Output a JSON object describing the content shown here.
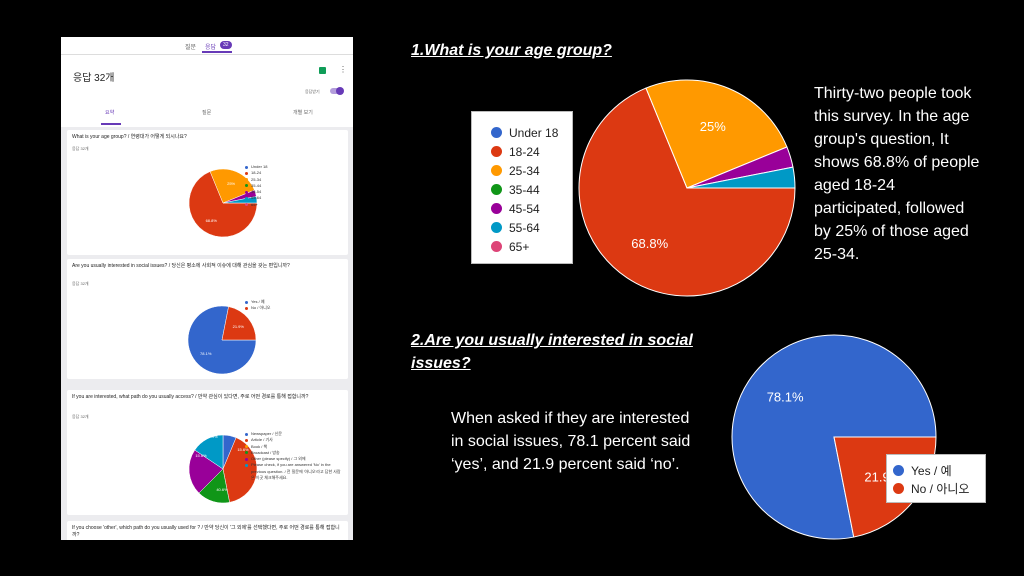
{
  "colors": {
    "blue": "#3366cc",
    "red": "#dc3912",
    "orange": "#ff9900",
    "green": "#109618",
    "purple": "#990099",
    "teal": "#0099c6",
    "pink": "#dd4477"
  },
  "phone": {
    "tabs": [
      "질문",
      "응답"
    ],
    "badge": "32",
    "title": "응답 32개",
    "accept_label": "응답받기",
    "subtabs": [
      "요약",
      "질문",
      "개별 보기"
    ],
    "card1": {
      "question": "What is your age group? / 연령대가 어떻게 되시나요?",
      "count": "응답 32개",
      "legend": [
        "Under 18",
        "18-24",
        "25-34",
        "35-44",
        "45-54",
        "55-64",
        "65+"
      ]
    },
    "card2": {
      "question": "Are you usually interested in social issues? / 당신은 평소에 사회적 이슈에 대해 관심을 갖는 편입니까?",
      "count": "응답 32개",
      "legend": [
        "Yes / 예",
        "No / 아니오"
      ]
    },
    "card3": {
      "question": "If you are interested, what path do you usually access? / 만약 관심이 있다면, 주로 어떤 경로를 통해 접합니까?",
      "count": "응답 32개",
      "legend": [
        "Newspaper / 신문",
        "Article / 기사",
        "Book / 책",
        "Broadcast / 방송",
        "Other (please specify) / 그 외에",
        "Please check, if you are answered 'No' in the previous question. / 전 질문에 '아니오'라고 답한 사람은 이곳 체크해주세요."
      ],
      "labels": [
        "21.9%",
        "15.6%",
        "15.6%",
        "40.6%"
      ]
    },
    "card4": {
      "question": "If you choose 'other', which path do you usually used for ? / 만약 당신이 '그 외에'를 선택했다면, 주로 어떤 경로를 통해 접합니까?"
    }
  },
  "section1": {
    "title": "1.What is your age group?",
    "paragraph": "Thirty-two people took this survey. In the age group's question, It shows 68.8% of people aged 18-24 participated, followed by 25% of those aged 25-34."
  },
  "section2": {
    "title": "2.Are you usually interested in social issues?",
    "paragraph": "When asked if they are interested in social issues, 78.1 percent said ‘yes’, and 21.9 percent said ‘no’."
  },
  "chart_data": [
    {
      "type": "pie",
      "title": "What is your age group? / 연령대가 어떻게 되시나요?",
      "categories": [
        "Under 18",
        "18-24",
        "25-34",
        "35-44",
        "45-54",
        "55-64",
        "65+"
      ],
      "values": [
        0,
        68.8,
        25,
        0,
        3.1,
        3.1,
        0
      ],
      "labels": [
        "",
        "68.8%",
        "25%",
        "",
        "",
        "",
        ""
      ],
      "colors": [
        "#3366cc",
        "#dc3912",
        "#ff9900",
        "#109618",
        "#990099",
        "#0099c6",
        "#dd4477"
      ],
      "legend": "left"
    },
    {
      "type": "pie",
      "title": "Are you usually interested in social issues? / 당신은 평소에 사회적 이슈에 대해 관심을 갖는 편입니까?",
      "categories": [
        "Yes / 예",
        "No / 아니오"
      ],
      "values": [
        78.1,
        21.9
      ],
      "labels": [
        "78.1%",
        "21.9%"
      ],
      "colors": [
        "#3366cc",
        "#dc3912"
      ],
      "legend": "bottom-right"
    },
    {
      "type": "pie",
      "title": "If you are interested, what path do you usually access? / 만약 관심이 있다면, 주로 어떤 경로를 통해 접합니까?",
      "categories": [
        "Newspaper / 신문",
        "Article / 기사",
        "Book / 책",
        "Broadcast / 방송",
        "Other (please specify) / 그 외에",
        "Please check, if you are answered 'No' in the previous question."
      ],
      "values": [
        6.3,
        40.6,
        0,
        15.6,
        21.9,
        15.6
      ],
      "colors": [
        "#3366cc",
        "#dc3912",
        "#ff9900",
        "#109618",
        "#990099",
        "#0099c6"
      ],
      "legend": "right"
    }
  ]
}
